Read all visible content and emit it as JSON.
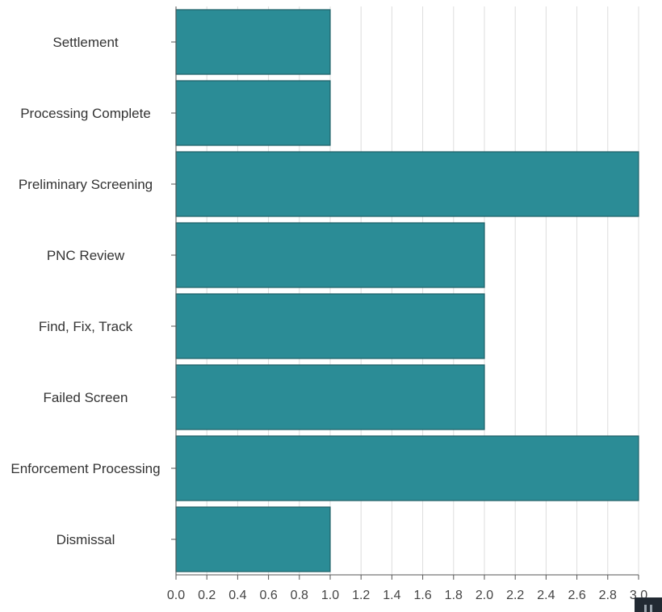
{
  "chart_data": {
    "type": "bar",
    "orientation": "horizontal",
    "categories": [
      "Settlement",
      "Processing Complete",
      "Preliminary Screening",
      "PNC Review",
      "Find, Fix, Track",
      "Failed Screen",
      "Enforcement Processing",
      "Dismissal"
    ],
    "values": [
      1,
      1,
      3,
      2,
      2,
      2,
      3,
      1
    ],
    "xlim": [
      0,
      3.0
    ],
    "x_ticks": [
      "0.0",
      "0.2",
      "0.4",
      "0.6",
      "0.8",
      "1.0",
      "1.2",
      "1.4",
      "1.6",
      "1.8",
      "2.0",
      "2.2",
      "2.4",
      "2.6",
      "2.8",
      "3.0"
    ],
    "grid": true,
    "legend": "none",
    "colors": {
      "bar": "#2b8c96",
      "bar_edge": "#1e5f66",
      "grid": "#dddddd",
      "axis": "#555555"
    }
  }
}
